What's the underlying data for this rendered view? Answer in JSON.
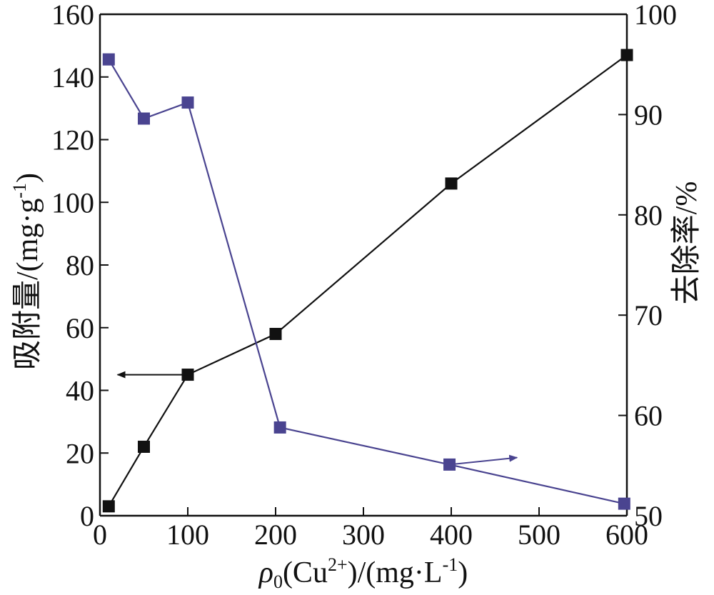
{
  "chart_data": {
    "type": "line",
    "x": [
      10,
      50,
      100,
      200,
      400,
      600
    ],
    "xlabel": "ρ0(Cu2+)/(mg·L-1)",
    "xlabel_parts": {
      "symbol": "ρ",
      "sub": "0",
      "pre": "(Cu",
      "sup": "2+",
      "mid": ")/(mg·L",
      "sup2": "-1",
      "post": ")"
    },
    "ylabel": "吸附量/(mg·g-1)",
    "ylabel_parts": {
      "main": "吸附量/(mg·g",
      "sup": "-1",
      "post": ")"
    },
    "y2label": "去除率/%",
    "xlim": [
      0,
      600
    ],
    "ylim": [
      0,
      160
    ],
    "y2lim": [
      50,
      100
    ],
    "x_ticks": [
      0,
      100,
      200,
      300,
      400,
      500,
      600
    ],
    "y_ticks": [
      0,
      20,
      40,
      60,
      80,
      100,
      120,
      140,
      160
    ],
    "y2_ticks": [
      50,
      60,
      70,
      80,
      90,
      100
    ],
    "series": [
      {
        "axis": "left",
        "color": "#111111",
        "marker": "square",
        "x": [
          10,
          50,
          100,
          200,
          400,
          600
        ],
        "values": [
          3,
          22,
          45,
          58,
          106,
          147
        ]
      },
      {
        "axis": "right",
        "color": "#4a4490",
        "marker": "square",
        "x": [
          10,
          50,
          100,
          205,
          398,
          597
        ],
        "values": [
          95.5,
          89.6,
          91.2,
          58.8,
          55.1,
          51.2
        ]
      }
    ],
    "annotations": [
      {
        "type": "arrow",
        "direction": "left",
        "from": [
          100,
          45
        ],
        "to": [
          20,
          45
        ],
        "axis": "left",
        "color": "#111111"
      },
      {
        "type": "arrow",
        "direction": "right",
        "from": [
          398,
          55.1
        ],
        "to": [
          475,
          55.8
        ],
        "axis": "right",
        "color": "#4a4490"
      }
    ],
    "grid": false,
    "legend": "none"
  }
}
